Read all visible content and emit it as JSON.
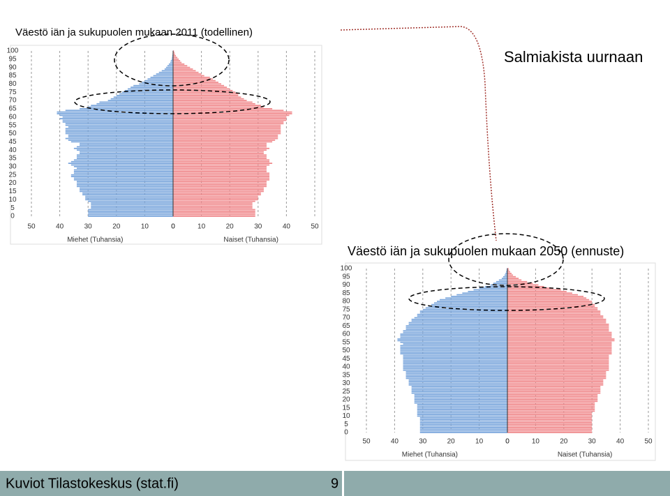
{
  "slide": {
    "heading": "Salmiakista uurnaan",
    "footer": "Kuviot Tilastokeskus (stat.fi)",
    "page_number": "9"
  },
  "chart_data": [
    {
      "type": "pyramid",
      "title": "Väestö iän ja sukupuolen mukaan 2011 (todellinen)",
      "y": [
        0,
        1,
        2,
        3,
        4,
        5,
        6,
        7,
        8,
        9,
        10,
        11,
        12,
        13,
        14,
        15,
        16,
        17,
        18,
        19,
        20,
        21,
        22,
        23,
        24,
        25,
        26,
        27,
        28,
        29,
        30,
        31,
        32,
        33,
        34,
        35,
        36,
        37,
        38,
        39,
        40,
        41,
        42,
        43,
        44,
        45,
        46,
        47,
        48,
        49,
        50,
        51,
        52,
        53,
        54,
        55,
        56,
        57,
        58,
        59,
        60,
        61,
        62,
        63,
        64,
        65,
        66,
        67,
        68,
        69,
        70,
        71,
        72,
        73,
        74,
        75,
        76,
        77,
        78,
        79,
        80,
        81,
        82,
        83,
        84,
        85,
        86,
        87,
        88,
        89,
        90,
        91,
        92,
        93,
        94,
        95,
        96,
        97,
        98,
        99,
        100
      ],
      "ylim": [
        0,
        100
      ],
      "yticks": [
        0,
        5,
        10,
        15,
        20,
        25,
        30,
        35,
        40,
        45,
        50,
        55,
        60,
        65,
        70,
        75,
        80,
        85,
        90,
        95,
        100
      ],
      "xlim": [
        0,
        50
      ],
      "xticks": [
        0,
        10,
        20,
        30,
        40,
        50
      ],
      "grid": true,
      "series": [
        {
          "name": "Miehet (Tuhansia)",
          "color": "#7aa6dc",
          "values": [
            30,
            30,
            30,
            30,
            30,
            29,
            29,
            29,
            29,
            30,
            31,
            31,
            31,
            32,
            32,
            33,
            33,
            33,
            34,
            34,
            34,
            34,
            35,
            35,
            36,
            36,
            35,
            35,
            35,
            34,
            35,
            36,
            37,
            36,
            35,
            34,
            34,
            34,
            33,
            33,
            34,
            35,
            34,
            33,
            33,
            36,
            37,
            38,
            37,
            37,
            38,
            38,
            38,
            38,
            37,
            38,
            38,
            39,
            39,
            40,
            39,
            40,
            41,
            41,
            38,
            33,
            30,
            29,
            27,
            26,
            23,
            22,
            21,
            20,
            19,
            18,
            17,
            16,
            15,
            14,
            12,
            11,
            10,
            9,
            8,
            7,
            6,
            5,
            4,
            3,
            2.5,
            2,
            1.5,
            1,
            0.8,
            0.5,
            0.4,
            0.3,
            0.2,
            0.1,
            0.1
          ]
        },
        {
          "name": "Naiset (Tuhansia)",
          "color": "#f0898c",
          "values": [
            29,
            29,
            29,
            29,
            29,
            28,
            28,
            28,
            28,
            29,
            30,
            30,
            30,
            31,
            31,
            32,
            32,
            32,
            33,
            33,
            33,
            33,
            34,
            34,
            34,
            34,
            34,
            33,
            33,
            33,
            33,
            34,
            35,
            34,
            34,
            33,
            33,
            33,
            32,
            32,
            33,
            34,
            33,
            33,
            33,
            35,
            36,
            37,
            37,
            37,
            38,
            38,
            38,
            38,
            38,
            38,
            39,
            39,
            40,
            40,
            40,
            41,
            42,
            42,
            39,
            35,
            32,
            31,
            29,
            28,
            26,
            25,
            24,
            23,
            23,
            22,
            21,
            20,
            19,
            18,
            17,
            16,
            15,
            14,
            13,
            11,
            10,
            9,
            8,
            7,
            6,
            5,
            4,
            3,
            2.5,
            2,
            1.5,
            1,
            0.7,
            0.5,
            0.3
          ]
        }
      ]
    },
    {
      "type": "pyramid",
      "title": "Väestö iän ja sukupuolen mukaan 2050 (ennuste)",
      "y": [
        0,
        1,
        2,
        3,
        4,
        5,
        6,
        7,
        8,
        9,
        10,
        11,
        12,
        13,
        14,
        15,
        16,
        17,
        18,
        19,
        20,
        21,
        22,
        23,
        24,
        25,
        26,
        27,
        28,
        29,
        30,
        31,
        32,
        33,
        34,
        35,
        36,
        37,
        38,
        39,
        40,
        41,
        42,
        43,
        44,
        45,
        46,
        47,
        48,
        49,
        50,
        51,
        52,
        53,
        54,
        55,
        56,
        57,
        58,
        59,
        60,
        61,
        62,
        63,
        64,
        65,
        66,
        67,
        68,
        69,
        70,
        71,
        72,
        73,
        74,
        75,
        76,
        77,
        78,
        79,
        80,
        81,
        82,
        83,
        84,
        85,
        86,
        87,
        88,
        89,
        90,
        91,
        92,
        93,
        94,
        95,
        96,
        97,
        98,
        99,
        100
      ],
      "ylim": [
        0,
        100
      ],
      "yticks": [
        0,
        5,
        10,
        15,
        20,
        25,
        30,
        35,
        40,
        45,
        50,
        55,
        60,
        65,
        70,
        75,
        80,
        85,
        90,
        95,
        100
      ],
      "xlim": [
        0,
        50
      ],
      "xticks": [
        0,
        10,
        20,
        30,
        40,
        50
      ],
      "grid": true,
      "series": [
        {
          "name": "Miehet (Tuhansia)",
          "color": "#7aa6dc",
          "values": [
            31,
            31,
            31,
            31,
            31,
            31,
            31,
            31,
            31,
            31,
            32,
            32,
            32,
            32,
            32,
            32,
            32,
            32,
            33,
            33,
            33,
            33,
            33,
            33,
            34,
            34,
            34,
            34,
            34,
            35,
            35,
            35,
            35,
            36,
            36,
            36,
            36,
            36,
            37,
            37,
            37,
            37,
            37,
            37,
            37,
            37,
            37,
            37,
            38,
            38,
            38,
            38,
            38,
            38,
            37,
            38,
            39,
            39,
            38,
            38,
            38,
            37,
            37,
            36,
            36,
            36,
            35,
            35,
            34,
            34,
            33,
            32,
            32,
            31,
            31,
            30,
            29,
            28,
            27,
            26,
            25,
            24,
            22,
            20,
            18,
            16,
            14,
            12,
            10,
            8,
            6,
            5,
            4,
            3,
            2,
            1.5,
            1,
            0.7,
            0.5,
            0.3,
            0.2
          ]
        },
        {
          "name": "Naiset (Tuhansia)",
          "color": "#f0898c",
          "values": [
            30,
            30,
            30,
            30,
            30,
            30,
            30,
            30,
            30,
            30,
            30,
            30,
            30,
            31,
            31,
            31,
            31,
            31,
            31,
            32,
            32,
            32,
            32,
            32,
            33,
            33,
            33,
            33,
            33,
            34,
            34,
            34,
            34,
            35,
            35,
            35,
            35,
            35,
            36,
            36,
            36,
            36,
            36,
            36,
            36,
            36,
            36,
            36,
            37,
            37,
            37,
            37,
            37,
            37,
            37,
            37,
            38,
            38,
            37,
            37,
            37,
            37,
            36,
            36,
            36,
            36,
            36,
            35,
            35,
            35,
            34,
            34,
            33,
            33,
            33,
            32,
            32,
            31,
            31,
            30,
            30,
            29,
            28,
            27,
            25,
            23,
            21,
            19,
            16,
            13,
            11,
            9,
            7,
            5,
            4,
            3,
            2,
            1.5,
            1,
            0.6,
            0.4
          ]
        }
      ]
    }
  ]
}
